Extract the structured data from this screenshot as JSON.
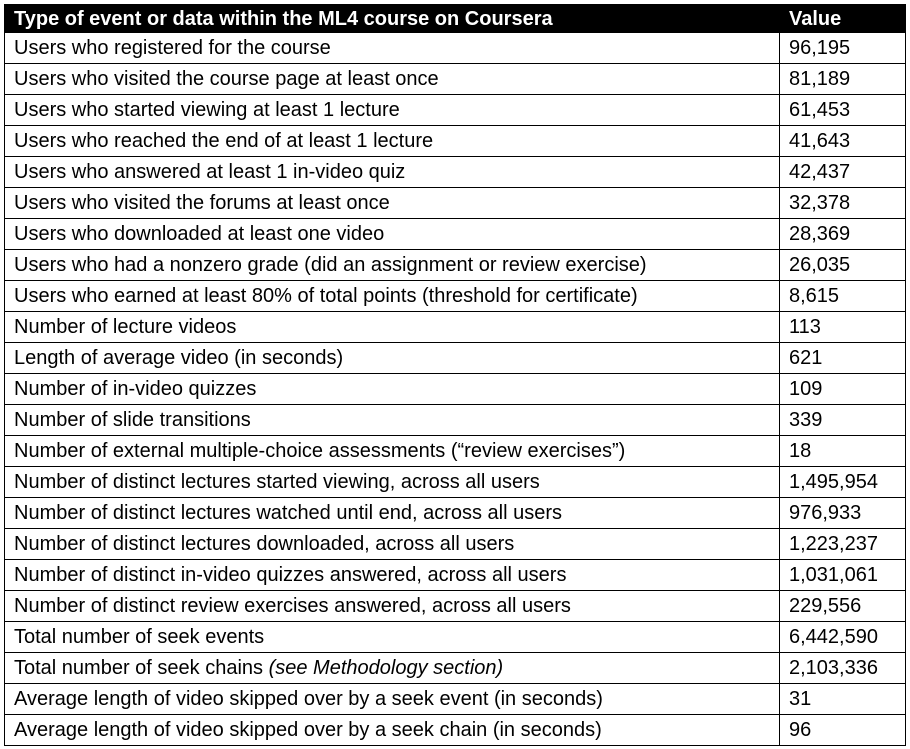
{
  "table": {
    "header": {
      "col1": "Type of event or data within the ML4 course on Coursera",
      "col2": "Value"
    },
    "rows": [
      {
        "label": "Users who registered for the course",
        "value": "96,195"
      },
      {
        "label": "Users who visited the course page at least once",
        "value": "81,189"
      },
      {
        "label": "Users who started viewing at least 1 lecture",
        "value": "61,453"
      },
      {
        "label": "Users who reached the end of at least 1 lecture",
        "value": "41,643"
      },
      {
        "label": "Users who answered at least 1 in-video quiz",
        "value": "42,437"
      },
      {
        "label": "Users who visited the forums at least once",
        "value": "32,378"
      },
      {
        "label": "Users who downloaded at least one video",
        "value": "28,369"
      },
      {
        "label": "Users who had a nonzero grade (did an assignment or review exercise)",
        "value": "26,035"
      },
      {
        "label": "Users who earned at least 80% of total points (threshold for certificate)",
        "value": "8,615"
      },
      {
        "label": "Number of lecture videos",
        "value": "113"
      },
      {
        "label": "Length of average video (in seconds)",
        "value": "621"
      },
      {
        "label": "Number of in-video quizzes",
        "value": "109"
      },
      {
        "label": "Number of slide transitions",
        "value": "339"
      },
      {
        "label": "Number of external multiple-choice assessments (“review exercises”)",
        "value": "18"
      },
      {
        "label": "Number of distinct lectures started viewing, across all users",
        "value": "1,495,954"
      },
      {
        "label": "Number of distinct lectures watched until end, across all users",
        "value": "976,933"
      },
      {
        "label": "Number of distinct lectures downloaded, across all users",
        "value": "1,223,237"
      },
      {
        "label": "Number of distinct in-video quizzes answered, across all users",
        "value": "1,031,061"
      },
      {
        "label": "Number of distinct review exercises answered, across all users",
        "value": "229,556"
      },
      {
        "label": "Total number of seek events",
        "value": "6,442,590"
      },
      {
        "label": "Total number of seek chains",
        "note": "(see Methodology section)",
        "value": "2,103,336"
      },
      {
        "label": "Average length of video skipped over by a seek event (in seconds)",
        "value": "31"
      },
      {
        "label": "Average length of video skipped over by a seek chain (in seconds)",
        "value": "96"
      }
    ]
  }
}
